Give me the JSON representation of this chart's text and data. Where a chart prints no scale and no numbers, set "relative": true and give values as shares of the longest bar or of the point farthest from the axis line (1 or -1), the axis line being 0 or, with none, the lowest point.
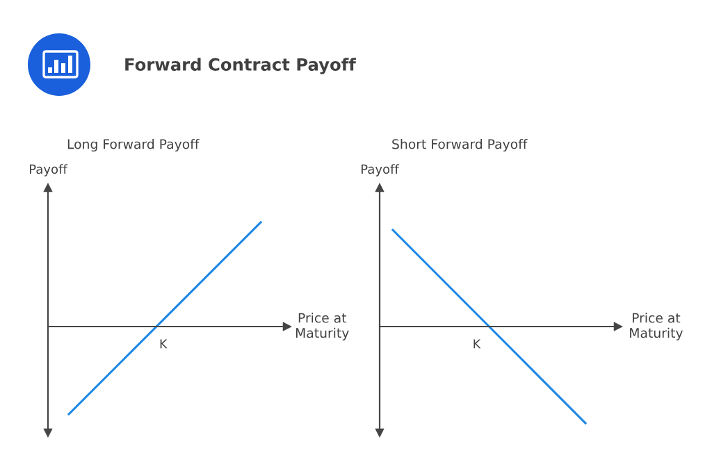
{
  "chart_data": [
    {
      "type": "other",
      "title": "Forward Contract Payoff"
    },
    {
      "type": "line",
      "title": "Long Forward Payoff",
      "xlabel": "Price at\nMaturity",
      "ylabel": "Payoff",
      "categories": [
        null,
        null
      ],
      "relative": true,
      "series": [
        {
          "color": "#1e88e5",
          "values": [
            -0.84,
            1
          ]
        }
      ],
      "annotations": [
        "K"
      ]
    },
    {
      "type": "line",
      "title": "Short Forward Payoff",
      "xlabel": "Price at\nMaturity",
      "ylabel": "Payoff",
      "categories": [
        null,
        null
      ],
      "relative": true,
      "series": [
        {
          "color": "#1e88e5",
          "values": [
            1,
            -1
          ]
        }
      ],
      "annotations": [
        "K"
      ]
    }
  ]
}
